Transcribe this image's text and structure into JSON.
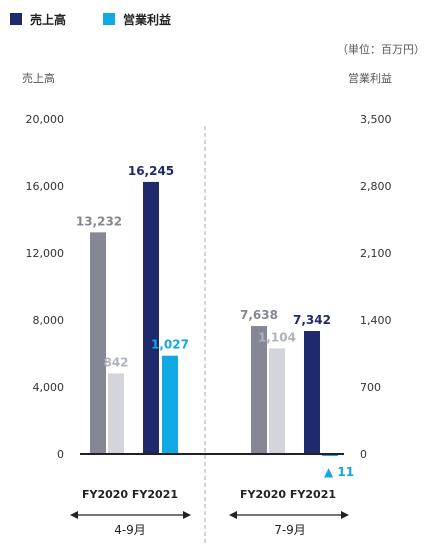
{
  "chart_data": {
    "type": "bar",
    "unit_note": "（単位：百万円）",
    "left_axis_label": "売上高",
    "right_axis_label": "営業利益",
    "left_ticks": [
      "20,000",
      "16,000",
      "12,000",
      "8,000",
      "4,000",
      "0"
    ],
    "right_ticks": [
      "3,500",
      "2,800",
      "2,100",
      "1,400",
      "700",
      "0"
    ],
    "ylim_left": [
      0,
      20000
    ],
    "ylim_right": [
      0,
      3500
    ],
    "legend": {
      "items": [
        {
          "name": "売上高",
          "color": "#1f2a6d"
        },
        {
          "name": "営業利益",
          "color": "#10a9e3"
        }
      ]
    },
    "groups": [
      {
        "period": "4-9月",
        "year_labels": "FY2020 FY2021",
        "bars": [
          {
            "series": "売上高",
            "year": "FY2020",
            "value": 13232,
            "label": "13,232",
            "color": "#858794",
            "label_color": "#858794"
          },
          {
            "series": "営業利益",
            "year": "FY2020",
            "value": 842,
            "label": "842",
            "color": "#d4d5dc",
            "label_color": "#b0b2bd"
          },
          {
            "series": "売上高",
            "year": "FY2021",
            "value": 16245,
            "label": "16,245",
            "color": "#1f2a6d",
            "label_color": "#1f2a6d"
          },
          {
            "series": "営業利益",
            "year": "FY2021",
            "value": 1027,
            "label": "1,027",
            "color": "#10a9e3",
            "label_color": "#10a9e3"
          }
        ]
      },
      {
        "period": "7-9月",
        "year_labels": "FY2020 FY2021",
        "bars": [
          {
            "series": "売上高",
            "year": "FY2020",
            "value": 7638,
            "label": "7,638",
            "color": "#858794",
            "label_color": "#858794"
          },
          {
            "series": "営業利益",
            "year": "FY2020",
            "value": 1104,
            "label": "1,104",
            "color": "#d4d5dc",
            "label_color": "#b0b2bd"
          },
          {
            "series": "売上高",
            "year": "FY2021",
            "value": 7342,
            "label": "7,342",
            "color": "#1f2a6d",
            "label_color": "#1f2a6d"
          },
          {
            "series": "営業利益",
            "year": "FY2021",
            "value": -11,
            "label": "▲ 11",
            "color": "#10a9e3",
            "label_color": "#10a9e3"
          }
        ]
      }
    ]
  }
}
